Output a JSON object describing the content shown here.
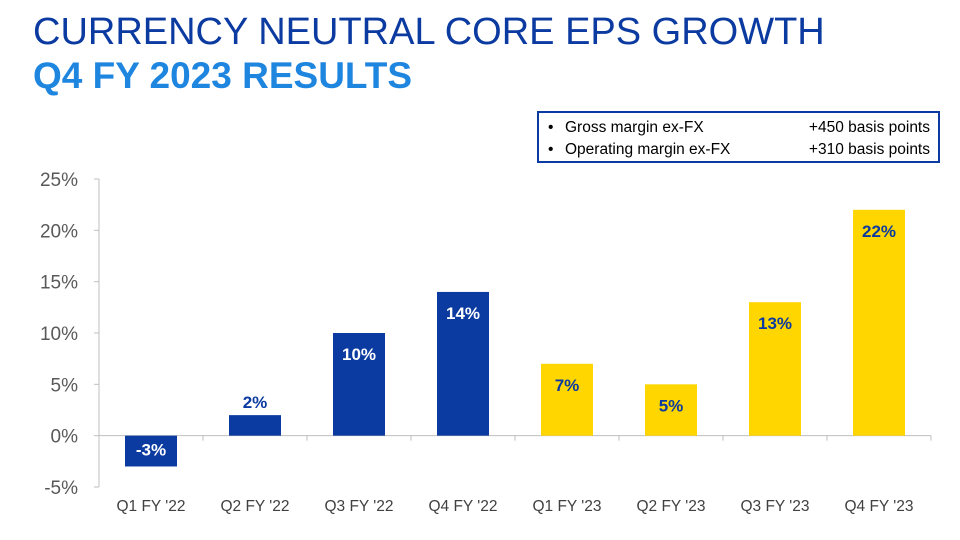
{
  "header": {
    "title": "CURRENCY NEUTRAL CORE EPS GROWTH",
    "subtitle": "Q4 FY 2023 RESULTS"
  },
  "callout": {
    "items": [
      {
        "label": "Gross margin ex-FX",
        "value": "+450 basis points"
      },
      {
        "label": "Operating margin ex-FX",
        "value": "+310 basis points"
      }
    ]
  },
  "colors": {
    "title": "#0b3aa0",
    "subtitle": "#1f86e0",
    "fy22_bar": "#0b3aa0",
    "fy23_bar": "#ffd600"
  },
  "chart_data": {
    "type": "bar",
    "categories": [
      "Q1 FY '22",
      "Q2 FY '22",
      "Q3 FY '22",
      "Q4 FY '22",
      "Q1 FY '23",
      "Q2 FY '23",
      "Q3 FY '23",
      "Q4 FY '23"
    ],
    "values": [
      -3,
      2,
      10,
      14,
      7,
      5,
      13,
      22
    ],
    "data_labels": [
      "-3%",
      "2%",
      "10%",
      "14%",
      "7%",
      "5%",
      "13%",
      "22%"
    ],
    "ylim": [
      -5,
      25
    ],
    "yticks": [
      -5,
      0,
      5,
      10,
      15,
      20,
      25
    ],
    "ytick_labels": [
      "-5%",
      "0%",
      "5%",
      "10%",
      "15%",
      "20%",
      "25%"
    ],
    "bar_colors": [
      "#0b3aa0",
      "#0b3aa0",
      "#0b3aa0",
      "#0b3aa0",
      "#ffd600",
      "#ffd600",
      "#ffd600",
      "#ffd600"
    ],
    "label_colors": [
      "#ffffff",
      "#0b3aa0",
      "#ffffff",
      "#ffffff",
      "#0b3aa0",
      "#0b3aa0",
      "#0b3aa0",
      "#0b3aa0"
    ],
    "grid": false,
    "legend": "none",
    "xlabel": "",
    "ylabel": ""
  }
}
